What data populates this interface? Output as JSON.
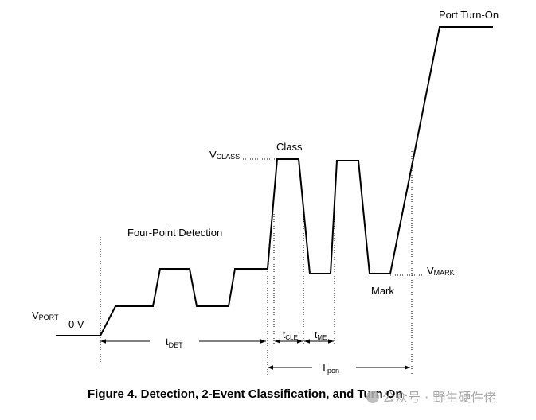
{
  "labels": {
    "port_turn_on": "Port Turn-On",
    "class": "Class",
    "v_class_main": "V",
    "v_class_sub": "CLASS",
    "four_point": "Four-Point Detection",
    "v_mark_main": "V",
    "v_mark_sub": "MARK",
    "mark": "Mark",
    "v_port_main": "V",
    "v_port_sub": "PORT",
    "zero_v": "0 V",
    "t_det_main": "t",
    "t_det_sub": "DET",
    "t_cle_main": "t",
    "t_cle_sub": "CLE",
    "t_me_main": "t",
    "t_me_sub": "ME",
    "t_pon_main": "T",
    "t_pon_sub": "pon"
  },
  "caption": "Figure 4.  Detection, 2-Event Classification, and Turn On",
  "watermark": "公众号 · 野生硬件佬",
  "colors": {
    "line": "#000000",
    "watermark": "#9a9a9a"
  }
}
